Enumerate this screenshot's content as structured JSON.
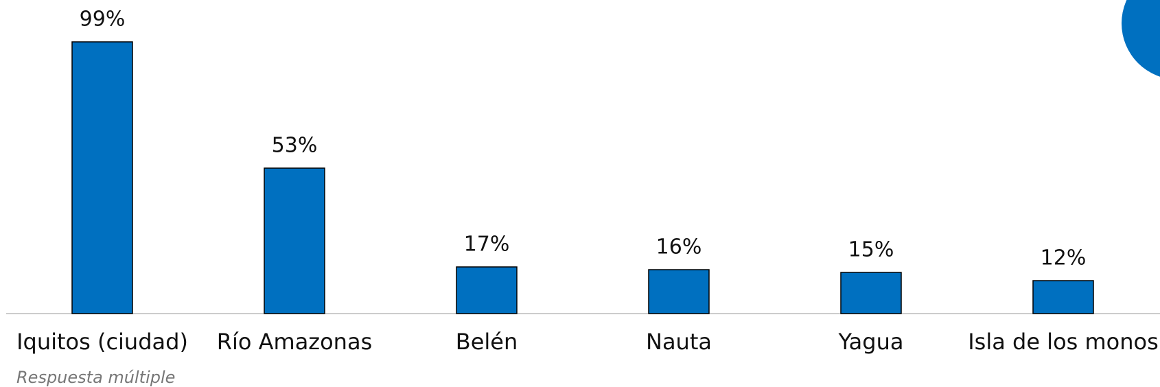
{
  "chart_data": {
    "type": "bar",
    "categories": [
      "Iquitos (ciudad)",
      "Río Amazonas",
      "Belén",
      "Nauta",
      "Yagua",
      "Isla de los monos"
    ],
    "values": [
      99,
      53,
      17,
      16,
      15,
      12
    ],
    "value_labels": [
      "99%",
      "53%",
      "17%",
      "16%",
      "15%",
      "12%"
    ],
    "color": "#0070c0",
    "ylim": [
      0,
      100
    ],
    "note": "Respuesta múltiple"
  }
}
